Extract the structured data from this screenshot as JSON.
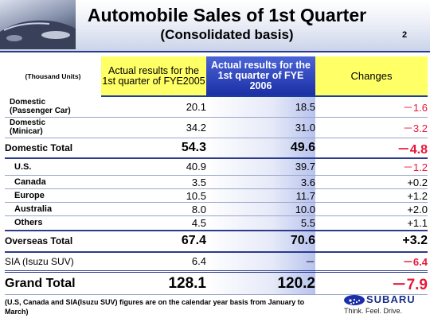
{
  "header": {
    "title": "Automobile Sales of 1st Quarter",
    "subtitle": "(Consolidated basis)",
    "page_number": "2"
  },
  "table": {
    "units_label": "(Thousand Units)",
    "columns": {
      "fye2005": "Actual results for the 1st quarter of FYE2005",
      "fye2006": "Actual results for the 1st quarter of FYE 2006",
      "changes": "Changes"
    },
    "rows": [
      {
        "label": "Domestic\n(Passenger Car)",
        "fye2005": "20.1",
        "fye2006": "18.5",
        "change": "－1.6"
      },
      {
        "label": "Domestic\n(Minicar)",
        "fye2005": "34.2",
        "fye2006": "31.0",
        "change": "－3.2"
      },
      {
        "label": "Domestic Total",
        "fye2005": "54.3",
        "fye2006": "49.6",
        "change": "－4.8"
      },
      {
        "label": "U.S.",
        "fye2005": "40.9",
        "fye2006": "39.7",
        "change": "－1.2"
      },
      {
        "label": "Canada",
        "fye2005": "3.5",
        "fye2006": "3.6",
        "change": "+0.2"
      },
      {
        "label": "Europe",
        "fye2005": "10.5",
        "fye2006": "11.7",
        "change": "+1.2"
      },
      {
        "label": "Australia",
        "fye2005": "8.0",
        "fye2006": "10.0",
        "change": "+2.0"
      },
      {
        "label": "Others",
        "fye2005": "4.5",
        "fye2006": "5.5",
        "change": "+1.1"
      },
      {
        "label": "Overseas Total",
        "fye2005": "67.4",
        "fye2006": "70.6",
        "change": "+3.2"
      },
      {
        "label": "SIA (Isuzu SUV)",
        "fye2005": "6.4",
        "fye2006": "－",
        "change": "－6.4"
      },
      {
        "label": "Grand Total",
        "fye2005": "128.1",
        "fye2006": "120.2",
        "change": "－7.9"
      }
    ]
  },
  "footnote": "(U.S, Canada and SIA(Isuzu SUV) figures are on the calendar year basis from January to March)",
  "logo": {
    "brand": "SUBARU",
    "tagline": "Think. Feel. Drive."
  },
  "colors": {
    "accent_blue": "#1c2fa6",
    "highlight_yellow": "#ffff66",
    "negative_red": "#e8173a"
  },
  "icons": [
    "car-photo",
    "subaru-logo-icon"
  ]
}
